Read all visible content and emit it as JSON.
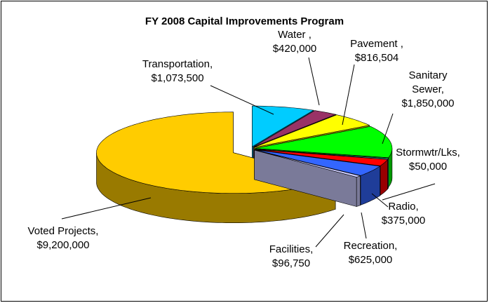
{
  "chart_data": {
    "type": "pie",
    "title": "FY 2008 Capital Improvements Program",
    "categories": [
      "Transportation,",
      "Water ,",
      "Pavement ,",
      "Sanitary Sewer,",
      "Stormwtr/Lks,",
      "Radio,",
      "Recreation,",
      "Facilities,",
      "Voted Projects,"
    ],
    "values": [
      1073500,
      420000,
      816504,
      1850000,
      50000,
      375000,
      625000,
      96750,
      9200000
    ],
    "value_labels": [
      "$1,073,500",
      "$420,000",
      "$816,504",
      "$1,850,000",
      "$50,000",
      "$375,000",
      "$625,000",
      "$96,750",
      "$9,200,000"
    ],
    "colors": [
      "#00ccff",
      "#993366",
      "#ffff00",
      "#00ff00",
      "#33cccc",
      "#ff0000",
      "#3366ff",
      "#ccccff",
      "#ffcc00"
    ]
  }
}
